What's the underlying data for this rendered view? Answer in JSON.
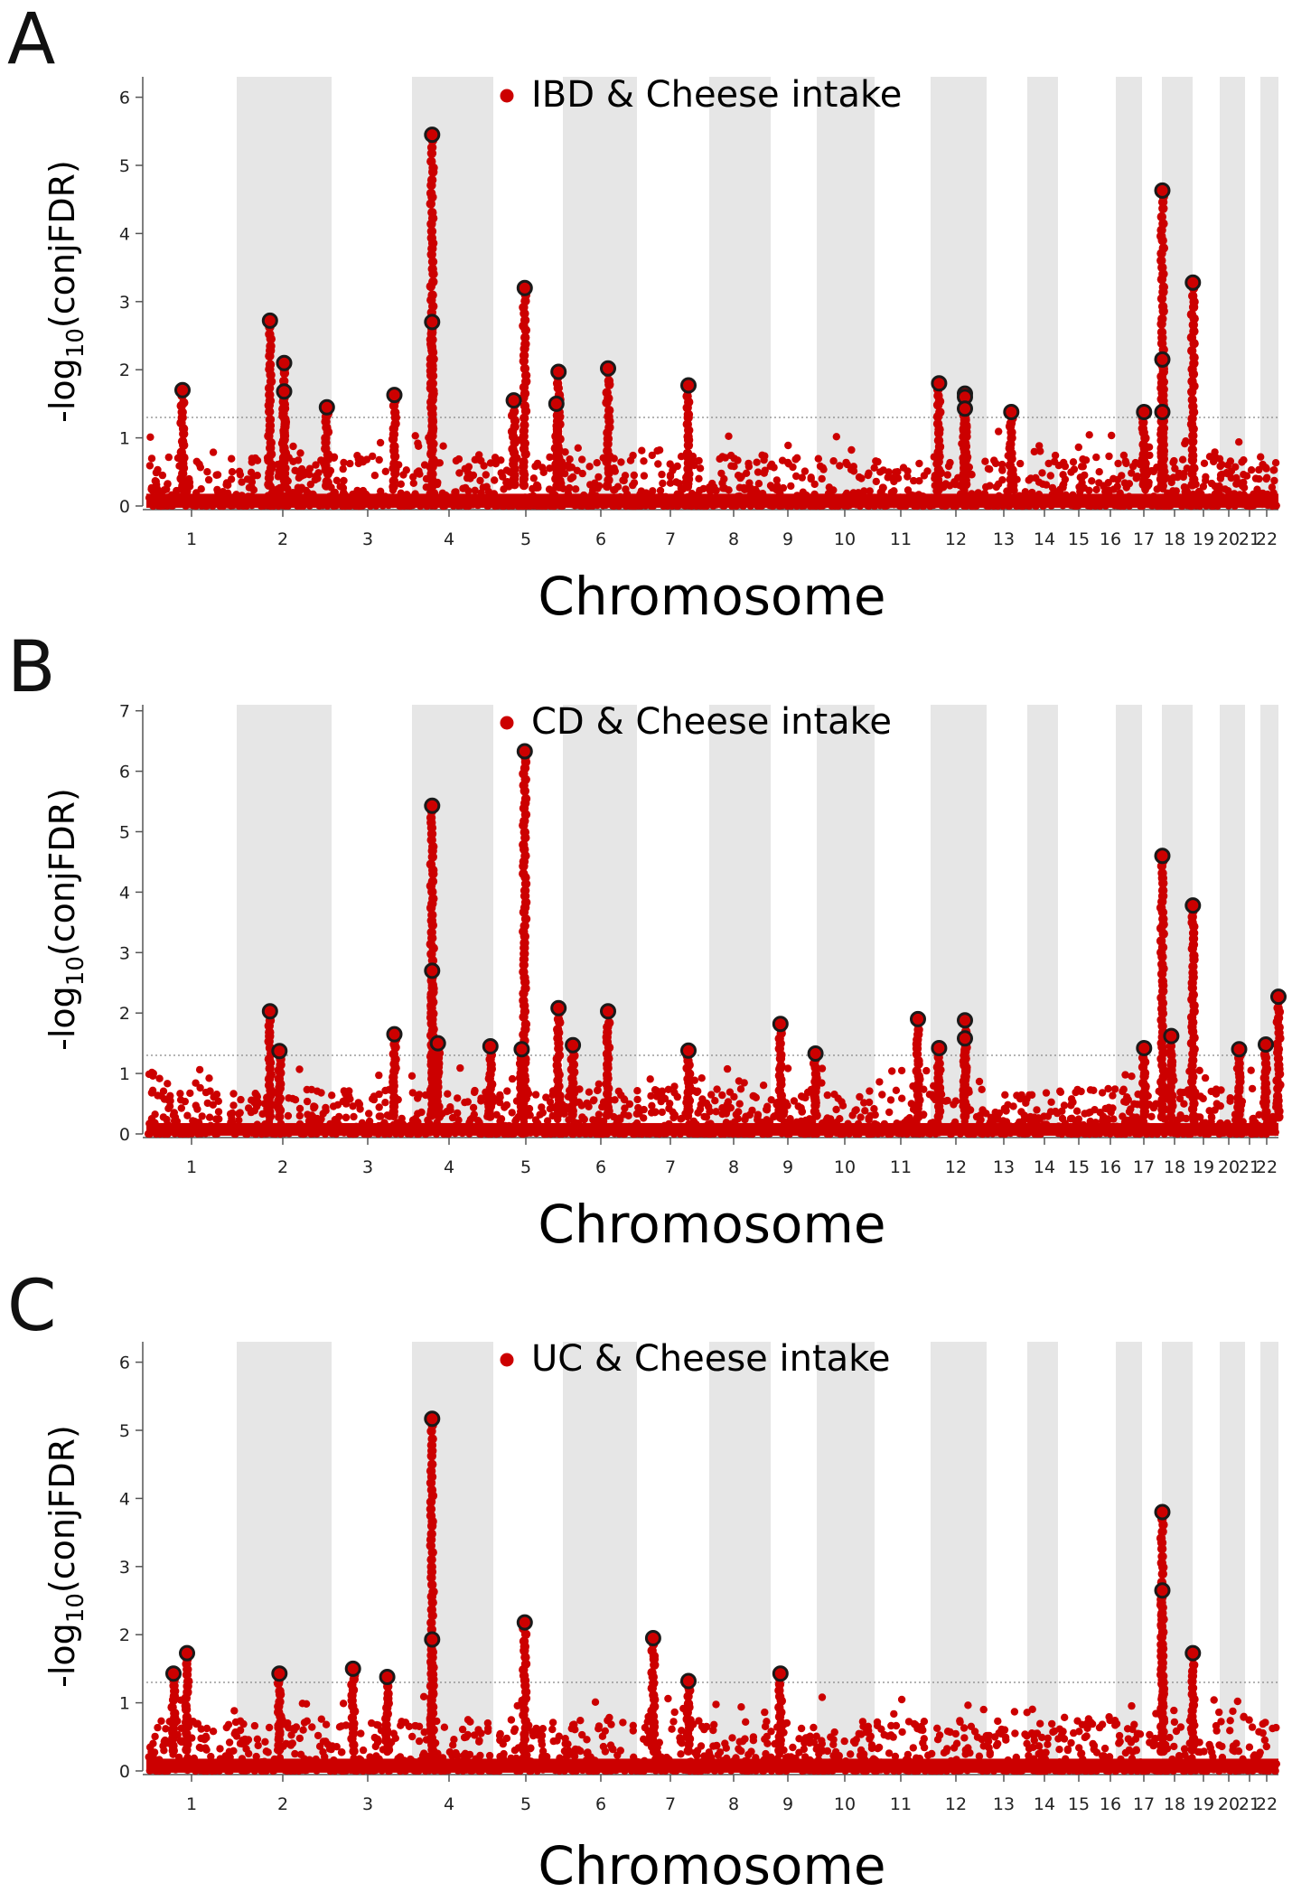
{
  "figure": {
    "colors": {
      "point": "#cc0000",
      "band": "#e6e6e6",
      "axis": "#555555",
      "highlight_outline": "#1a1a1a",
      "threshold": "#888888"
    },
    "threshold_value": 1.3
  },
  "chart_data": [
    {
      "panel_label": "A",
      "type": "scatter",
      "legend": "IBD & Cheese intake",
      "xlabel": "Chromosome",
      "ylabel": {
        "base": "-log",
        "sub": "10",
        "rest": "(conjFDR)"
      },
      "ylim": [
        0,
        6.3
      ],
      "yticks": [
        "0",
        "1",
        "2",
        "3",
        "4",
        "5",
        "6"
      ],
      "xticks": [
        "1",
        "2",
        "3",
        "4",
        "5",
        "6",
        "7",
        "8",
        "9",
        "10",
        "11",
        "12",
        "13",
        "14",
        "15",
        "16",
        "17",
        "18",
        "19",
        "20",
        "21",
        "22"
      ],
      "threshold": 1.3,
      "lead_snps": [
        {
          "pos": 0.4,
          "y": 1.7
        },
        {
          "pos": 1.35,
          "y": 2.72
        },
        {
          "pos": 1.5,
          "y": 2.1
        },
        {
          "pos": 1.5,
          "y": 1.68
        },
        {
          "pos": 1.95,
          "y": 1.45
        },
        {
          "pos": 2.88,
          "y": 1.63
        },
        {
          "pos": 3.25,
          "y": 5.45
        },
        {
          "pos": 3.25,
          "y": 2.7
        },
        {
          "pos": 3.95,
          "y": 1.55
        },
        {
          "pos": 4.12,
          "y": 3.2
        },
        {
          "pos": 4.85,
          "y": 1.5
        },
        {
          "pos": 4.9,
          "y": 1.97
        },
        {
          "pos": 5.45,
          "y": 2.02
        },
        {
          "pos": 6.55,
          "y": 1.77
        },
        {
          "pos": 10.45,
          "y": 1.8
        },
        {
          "pos": 11.0,
          "y": 1.65
        },
        {
          "pos": 11.0,
          "y": 1.6
        },
        {
          "pos": 11.0,
          "y": 1.43
        },
        {
          "pos": 11.95,
          "y": 1.38
        },
        {
          "pos": 15.05,
          "y": 1.38
        },
        {
          "pos": 15.5,
          "y": 4.63
        },
        {
          "pos": 15.5,
          "y": 2.15
        },
        {
          "pos": 15.5,
          "y": 1.38
        },
        {
          "pos": 16.45,
          "y": 3.28
        }
      ]
    },
    {
      "panel_label": "B",
      "type": "scatter",
      "legend": "CD & Cheese intake",
      "xlabel": "Chromosome",
      "ylabel": {
        "base": "-log",
        "sub": "10",
        "rest": "(conjFDR)"
      },
      "ylim": [
        0,
        7.1
      ],
      "yticks": [
        "0",
        "1",
        "2",
        "3",
        "4",
        "5",
        "6",
        "7"
      ],
      "xticks": [
        "1",
        "2",
        "3",
        "4",
        "5",
        "6",
        "7",
        "8",
        "9",
        "10",
        "11",
        "12",
        "13",
        "14",
        "15",
        "16",
        "17",
        "18",
        "19",
        "20",
        "21",
        "22"
      ],
      "threshold": 1.3,
      "lead_snps": [
        {
          "pos": 1.35,
          "y": 2.03
        },
        {
          "pos": 1.45,
          "y": 1.37
        },
        {
          "pos": 2.88,
          "y": 1.65
        },
        {
          "pos": 3.25,
          "y": 5.43
        },
        {
          "pos": 3.25,
          "y": 2.7
        },
        {
          "pos": 3.3,
          "y": 1.5
        },
        {
          "pos": 3.75,
          "y": 1.45
        },
        {
          "pos": 4.05,
          "y": 1.4
        },
        {
          "pos": 4.12,
          "y": 6.33
        },
        {
          "pos": 4.9,
          "y": 2.08
        },
        {
          "pos": 5.1,
          "y": 1.47
        },
        {
          "pos": 5.45,
          "y": 2.03
        },
        {
          "pos": 6.55,
          "y": 1.38
        },
        {
          "pos": 7.75,
          "y": 1.82
        },
        {
          "pos": 8.2,
          "y": 1.33
        },
        {
          "pos": 10.0,
          "y": 1.9
        },
        {
          "pos": 10.45,
          "y": 1.42
        },
        {
          "pos": 11.0,
          "y": 1.88
        },
        {
          "pos": 11.0,
          "y": 1.58
        },
        {
          "pos": 15.05,
          "y": 1.42
        },
        {
          "pos": 15.5,
          "y": 4.6
        },
        {
          "pos": 15.72,
          "y": 1.62
        },
        {
          "pos": 16.45,
          "y": 3.78
        },
        {
          "pos": 18.3,
          "y": 1.4
        },
        {
          "pos": 20.3,
          "y": 1.48
        },
        {
          "pos": 21.7,
          "y": 2.27
        }
      ]
    },
    {
      "panel_label": "C",
      "type": "scatter",
      "legend": "UC & Cheese intake",
      "xlabel": "Chromosome",
      "ylabel": {
        "base": "-log",
        "sub": "10",
        "rest": "(conjFDR)"
      },
      "ylim": [
        0,
        6.3
      ],
      "yticks": [
        "0",
        "1",
        "2",
        "3",
        "4",
        "5",
        "6"
      ],
      "xticks": [
        "1",
        "2",
        "3",
        "4",
        "5",
        "6",
        "7",
        "8",
        "9",
        "10",
        "11",
        "12",
        "13",
        "14",
        "15",
        "16",
        "17",
        "18",
        "19",
        "20",
        "21",
        "22"
      ],
      "threshold": 1.3,
      "lead_snps": [
        {
          "pos": 0.3,
          "y": 1.43
        },
        {
          "pos": 0.45,
          "y": 1.73
        },
        {
          "pos": 1.45,
          "y": 1.43
        },
        {
          "pos": 2.3,
          "y": 1.5
        },
        {
          "pos": 2.78,
          "y": 1.38
        },
        {
          "pos": 3.25,
          "y": 5.17
        },
        {
          "pos": 3.25,
          "y": 1.93
        },
        {
          "pos": 4.12,
          "y": 2.18
        },
        {
          "pos": 5.9,
          "y": 1.95
        },
        {
          "pos": 6.55,
          "y": 1.32
        },
        {
          "pos": 7.75,
          "y": 1.43
        },
        {
          "pos": 15.5,
          "y": 3.8
        },
        {
          "pos": 15.5,
          "y": 2.65
        },
        {
          "pos": 16.45,
          "y": 1.73
        }
      ]
    }
  ]
}
